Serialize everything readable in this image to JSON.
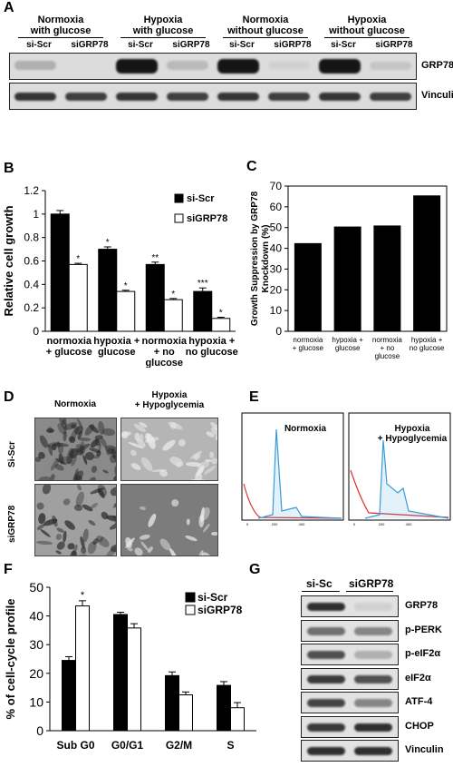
{
  "panels": {
    "A": "A",
    "B": "B",
    "C": "C",
    "D": "D",
    "E": "E",
    "F": "F",
    "G": "G"
  },
  "panelA": {
    "conditions": [
      "Normoxia\nwith glucose",
      "Hypoxia\nwith glucose",
      "Normoxia\nwithout glucose",
      "Hypoxia\nwithout glucose"
    ],
    "lanes": [
      "si-Scr",
      "siGRP78",
      "si-Scr",
      "siGRP78",
      "si-Scr",
      "siGRP78",
      "si-Scr",
      "siGRP78"
    ],
    "blots": [
      "GRP78",
      "Vinculin"
    ],
    "grp78_intensity": [
      0.25,
      0.05,
      0.95,
      0.2,
      0.95,
      0.1,
      0.95,
      0.15
    ],
    "vinculin_intensity": [
      0.85,
      0.8,
      0.85,
      0.8,
      0.85,
      0.8,
      0.85,
      0.8
    ]
  },
  "chart_data": [
    {
      "type": "bar",
      "panel": "B",
      "ylabel": "Relative cell growth",
      "xlabel": "",
      "ylim": [
        0,
        1.2
      ],
      "yticks": [
        "0",
        "0.2",
        "0.4",
        "0.6",
        "0.8",
        "1",
        "1.2"
      ],
      "categories": [
        "normoxia\n+ glucose",
        "hypoxia +\nglucose",
        "normoxia\n+ no\nglucose",
        "hypoxia +\nno glucose"
      ],
      "series": [
        {
          "name": "si-Scr",
          "values": [
            1.0,
            0.7,
            0.57,
            0.34
          ],
          "errors": [
            0.03,
            0.02,
            0.02,
            0.03
          ],
          "stars": [
            "",
            "*",
            "**",
            "***"
          ],
          "color": "#000000"
        },
        {
          "name": "siGRP78",
          "values": [
            0.57,
            0.34,
            0.27,
            0.11
          ],
          "errors": [
            0.01,
            0.01,
            0.01,
            0.01
          ],
          "stars": [
            "*",
            "*",
            "*",
            "*"
          ],
          "color": "#ffffff"
        }
      ],
      "legend": "top-right"
    },
    {
      "type": "bar",
      "panel": "C",
      "ylabel": "Growth  Suppression by GRP78\nKnockdown (%)",
      "xlabel": "",
      "ylim": [
        0,
        70
      ],
      "yticks": [
        "0",
        "10",
        "20",
        "30",
        "40",
        "50",
        "60",
        "70"
      ],
      "categories": [
        "normoxia\n+ glucose",
        "hypoxia +\nglucose",
        "normoxia\n+ no\nglucose",
        "hypoxia +\nno glucose"
      ],
      "values": [
        42.5,
        50.5,
        51,
        65.5
      ]
    },
    {
      "type": "bar",
      "panel": "F",
      "ylabel": "% of cell-cycle profile",
      "xlabel": "",
      "ylim": [
        0,
        50
      ],
      "yticks": [
        "0",
        "10",
        "20",
        "30",
        "40",
        "50"
      ],
      "categories": [
        "Sub G0",
        "G0/G1",
        "G2/M",
        "S"
      ],
      "series": [
        {
          "name": "si-Scr",
          "values": [
            24.5,
            40.5,
            19.2,
            15.8
          ],
          "errors": [
            1.3,
            0.8,
            1.3,
            1.3
          ],
          "stars": [
            "",
            "",
            "",
            ""
          ],
          "color": "#000000"
        },
        {
          "name": "siGRP78",
          "values": [
            43.5,
            35.8,
            12.5,
            8.0
          ],
          "errors": [
            1.8,
            1.5,
            1.0,
            1.8
          ],
          "stars": [
            "*",
            "",
            "",
            ""
          ],
          "color": "#ffffff"
        }
      ],
      "legend": "top-right"
    }
  ],
  "panelD": {
    "columns": [
      "Normoxia",
      "Hypoxia\n+ Hypoglycemia"
    ],
    "rows": [
      "Si-Scr",
      "siGRP78"
    ]
  },
  "panelE": {
    "labels": [
      "Normoxia",
      "Hypoxia\n+ Hypoglycemia"
    ]
  },
  "panelG": {
    "lanes": [
      "si-Sc",
      "siGRP78"
    ],
    "blots": [
      "GRP78",
      "p-PERK",
      "p-eIF2α",
      "eIF2α",
      "ATF-4",
      "CHOP",
      "Vinculin"
    ],
    "intensity": [
      [
        0.85,
        0.1
      ],
      [
        0.55,
        0.45
      ],
      [
        0.7,
        0.25
      ],
      [
        0.8,
        0.7
      ],
      [
        0.75,
        0.45
      ],
      [
        0.8,
        0.85
      ],
      [
        0.85,
        0.85
      ]
    ]
  }
}
